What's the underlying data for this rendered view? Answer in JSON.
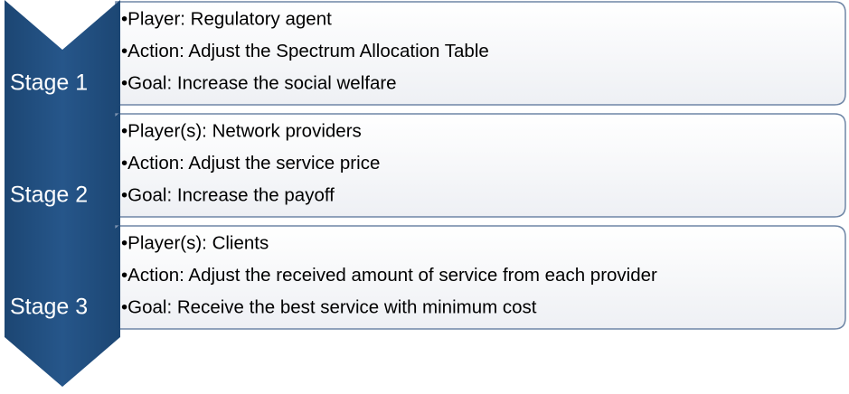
{
  "stages": [
    {
      "label": "Stage 1",
      "bullets": [
        "•Player: Regulatory agent",
        "•Action: Adjust the Spectrum Allocation Table",
        "•Goal: Increase the social welfare"
      ]
    },
    {
      "label": "Stage 2",
      "bullets": [
        "•Player(s): Network providers",
        "•Action: Adjust the service price",
        "•Goal: Increase the payoff"
      ]
    },
    {
      "label": "Stage 3",
      "bullets": [
        "•Player(s): Clients",
        "•Action: Adjust the received amount of service from each provider",
        "•Goal: Receive the best service with minimum cost"
      ]
    }
  ]
}
